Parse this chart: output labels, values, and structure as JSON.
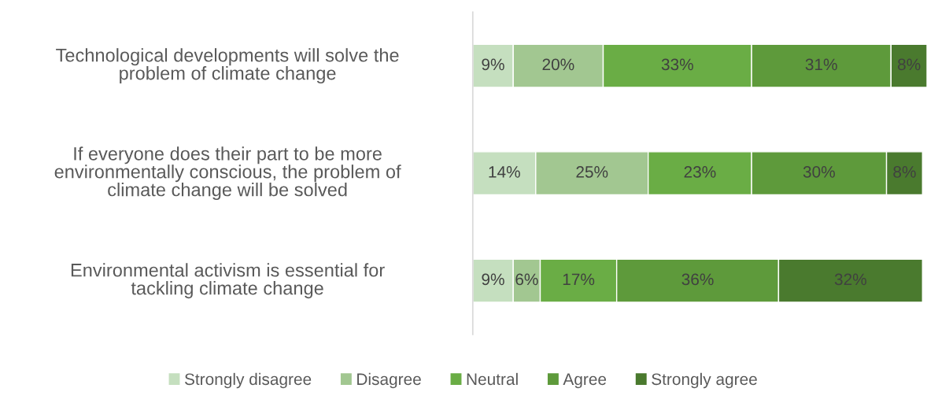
{
  "chart_data": {
    "type": "bar",
    "orientation": "horizontal",
    "stacked": true,
    "legend": "bottom",
    "categories": [
      "Technological developments will solve the problem of climate change",
      "If everyone does their part to be more environmentally conscious, the problem of climate change will be solved",
      "Environmental activism is essential for tackling climate change"
    ],
    "series": [
      {
        "name": "Strongly disagree",
        "color": "#c5dfbf",
        "values": [
          9,
          14,
          9
        ],
        "value_labels": [
          "9%",
          "14%",
          "9%"
        ]
      },
      {
        "name": "Disagree",
        "color": "#a2c791",
        "values": [
          20,
          25,
          6
        ],
        "value_labels": [
          "20%",
          "25%",
          "6%"
        ]
      },
      {
        "name": "Neutral",
        "color": "#6aad45",
        "values": [
          33,
          23,
          17
        ],
        "value_labels": [
          "33%",
          "23%",
          "17%"
        ]
      },
      {
        "name": "Agree",
        "color": "#5e9a3b",
        "values": [
          31,
          30,
          36
        ],
        "value_labels": [
          "31%",
          "30%",
          "36%"
        ]
      },
      {
        "name": "Strongly agree",
        "color": "#4a7a2e",
        "values": [
          8,
          8,
          32
        ],
        "value_labels": [
          "8%",
          "8%",
          "32%"
        ]
      }
    ]
  }
}
